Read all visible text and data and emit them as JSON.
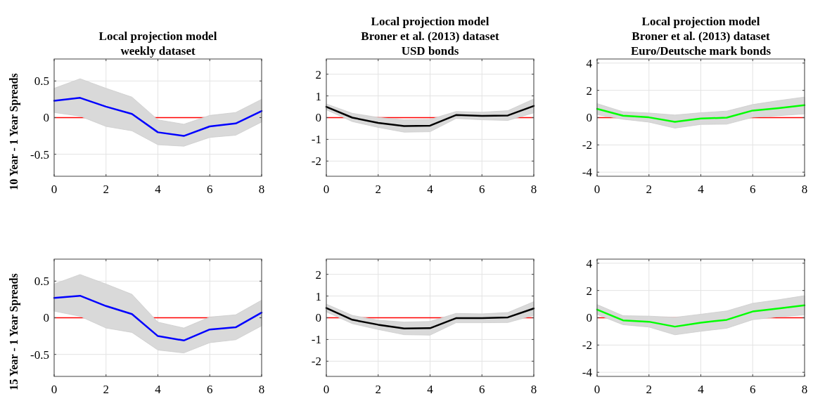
{
  "chart_data": [
    {
      "type": "line",
      "title": "Local projection model\nweekly dataset",
      "ylabel": "10 Year - 1 Year Spreads",
      "x": [
        0,
        1,
        2,
        3,
        4,
        5,
        6,
        7,
        8
      ],
      "xlim": [
        0,
        8
      ],
      "xticks": [
        0,
        2,
        4,
        6,
        8
      ],
      "ylim": [
        -0.8,
        0.8
      ],
      "yticks": [
        -0.5,
        0,
        0.5
      ],
      "grid": true,
      "ref_lines": [
        {
          "axis": "y",
          "value": 0,
          "color": "#ff0000"
        }
      ],
      "series": [
        {
          "color": "#0000ff",
          "values": [
            0.23,
            0.27,
            0.15,
            0.05,
            -0.2,
            -0.25,
            -0.12,
            -0.08,
            0.09
          ],
          "lower": [
            0.07,
            0.02,
            -0.12,
            -0.18,
            -0.37,
            -0.39,
            -0.27,
            -0.24,
            -0.06
          ],
          "upper": [
            0.4,
            0.53,
            0.4,
            0.28,
            -0.03,
            -0.09,
            0.03,
            0.07,
            0.25
          ]
        }
      ]
    },
    {
      "type": "line",
      "title": "Local projection model\nBroner et al. (2013) dataset\nUSD bonds",
      "x": [
        0,
        1,
        2,
        3,
        4,
        5,
        6,
        7,
        8
      ],
      "xlim": [
        0,
        8
      ],
      "xticks": [
        0,
        2,
        4,
        6,
        8
      ],
      "ylim": [
        -2.7,
        2.7
      ],
      "yticks": [
        -2,
        -1,
        0,
        1,
        2
      ],
      "grid": true,
      "ref_lines": [
        {
          "axis": "y",
          "value": 0,
          "color": "#ff0000"
        }
      ],
      "series": [
        {
          "color": "#000000",
          "values": [
            0.5,
            0,
            -0.24,
            -0.39,
            -0.37,
            0.12,
            0.08,
            0.1,
            0.54
          ],
          "lower": [
            0.36,
            -0.18,
            -0.45,
            -0.67,
            -0.65,
            -0.04,
            -0.1,
            -0.13,
            0.22
          ],
          "upper": [
            0.63,
            0.2,
            0.01,
            -0.1,
            -0.08,
            0.28,
            0.25,
            0.32,
            0.86
          ]
        }
      ]
    },
    {
      "type": "line",
      "title": "Local projection model\nBroner et al. (2013) dataset\nEuro/Deutsche mark bonds",
      "x": [
        0,
        1,
        2,
        3,
        4,
        5,
        6,
        7,
        8
      ],
      "xlim": [
        0,
        8
      ],
      "xticks": [
        0,
        2,
        4,
        6,
        8
      ],
      "ylim": [
        -4.3,
        4.3
      ],
      "yticks": [
        -4,
        -2,
        0,
        2,
        4
      ],
      "grid": true,
      "ref_lines": [
        {
          "axis": "y",
          "value": 0,
          "color": "#ff0000"
        }
      ],
      "series": [
        {
          "color": "#00ff00",
          "values": [
            0.64,
            0.14,
            0.02,
            -0.31,
            -0.07,
            0,
            0.52,
            0.7,
            0.91
          ],
          "lower": [
            0.22,
            -0.12,
            -0.33,
            -0.77,
            -0.5,
            -0.48,
            0.02,
            0.14,
            0.27
          ],
          "upper": [
            1.03,
            0.43,
            0.34,
            0.19,
            0.36,
            0.48,
            0.96,
            1.25,
            1.51
          ]
        }
      ]
    },
    {
      "type": "line",
      "ylabel": "15 Year - 1 Year Spreads",
      "x": [
        0,
        1,
        2,
        3,
        4,
        5,
        6,
        7,
        8
      ],
      "xlim": [
        0,
        8
      ],
      "xticks": [
        0,
        2,
        4,
        6,
        8
      ],
      "ylim": [
        -0.8,
        0.8
      ],
      "yticks": [
        -0.5,
        0,
        0.5
      ],
      "grid": true,
      "ref_lines": [
        {
          "axis": "y",
          "value": 0,
          "color": "#ff0000"
        }
      ],
      "series": [
        {
          "color": "#0000ff",
          "values": [
            0.27,
            0.3,
            0.16,
            0.05,
            -0.25,
            -0.31,
            -0.16,
            -0.13,
            0.07
          ],
          "lower": [
            0.09,
            0.02,
            -0.14,
            -0.2,
            -0.44,
            -0.48,
            -0.34,
            -0.3,
            -0.11
          ],
          "upper": [
            0.46,
            0.59,
            0.46,
            0.32,
            -0.06,
            -0.14,
            0.01,
            0.04,
            0.24
          ]
        }
      ]
    },
    {
      "type": "line",
      "x": [
        0,
        1,
        2,
        3,
        4,
        5,
        6,
        7,
        8
      ],
      "xlim": [
        0,
        8
      ],
      "xticks": [
        0,
        2,
        4,
        6,
        8
      ],
      "ylim": [
        -2.7,
        2.7
      ],
      "yticks": [
        -2,
        -1,
        0,
        1,
        2
      ],
      "grid": true,
      "ref_lines": [
        {
          "axis": "y",
          "value": 0,
          "color": "#ff0000"
        }
      ],
      "series": [
        {
          "color": "#000000",
          "values": [
            0.45,
            -0.09,
            -0.32,
            -0.49,
            -0.48,
            -0.02,
            -0.02,
            0.02,
            0.43
          ],
          "lower": [
            0.27,
            -0.27,
            -0.54,
            -0.78,
            -0.8,
            -0.23,
            -0.23,
            -0.22,
            0.11
          ],
          "upper": [
            0.63,
            0.11,
            -0.11,
            -0.2,
            -0.17,
            0.2,
            0.18,
            0.24,
            0.74
          ]
        }
      ]
    },
    {
      "type": "line",
      "x": [
        0,
        1,
        2,
        3,
        4,
        5,
        6,
        7,
        8
      ],
      "xlim": [
        0,
        8
      ],
      "xticks": [
        0,
        2,
        4,
        6,
        8
      ],
      "ylim": [
        -4.3,
        4.3
      ],
      "yticks": [
        -4,
        -2,
        0,
        2,
        4
      ],
      "grid": true,
      "ref_lines": [
        {
          "axis": "y",
          "value": 0,
          "color": "#ff0000"
        }
      ],
      "series": [
        {
          "color": "#00ff00",
          "values": [
            0.6,
            -0.19,
            -0.29,
            -0.65,
            -0.36,
            -0.15,
            0.46,
            0.68,
            0.91
          ],
          "lower": [
            0.24,
            -0.51,
            -0.68,
            -1.25,
            -0.99,
            -0.77,
            -0.14,
            0.07,
            0.21
          ],
          "upper": [
            0.97,
            0.15,
            0.12,
            0.03,
            0.26,
            0.5,
            1.06,
            1.32,
            1.62
          ]
        }
      ]
    }
  ]
}
